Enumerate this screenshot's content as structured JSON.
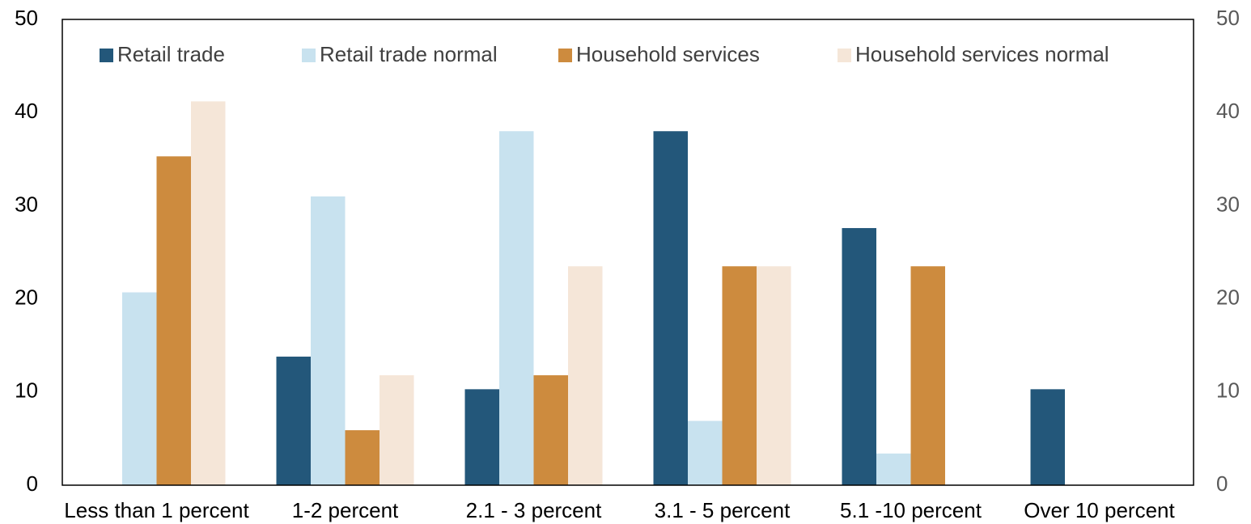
{
  "chart_data": {
    "type": "bar",
    "categories": [
      "Less than 1 percent",
      "1-2 percent",
      "2.1 - 3 percent",
      "3.1 - 5 percent",
      "5.1 -10 percent",
      "Over 10 percent"
    ],
    "series": [
      {
        "name": "Retail trade",
        "color": "#23577a",
        "values": [
          0,
          13.8,
          10.3,
          38,
          27.6,
          10.3
        ]
      },
      {
        "name": "Retail trade normal",
        "color": "#c8e2ef",
        "values": [
          20.7,
          31,
          38,
          6.9,
          3.4,
          0
        ]
      },
      {
        "name": "Household services",
        "color": "#cd8b3e",
        "values": [
          35.3,
          5.9,
          11.8,
          23.5,
          23.5,
          0
        ]
      },
      {
        "name": "Household services normal",
        "color": "#f5e6d8",
        "values": [
          41.2,
          11.8,
          23.5,
          23.5,
          0,
          0
        ]
      }
    ],
    "ylim": [
      0,
      50
    ],
    "yticks": [
      0,
      10,
      20,
      30,
      40,
      50
    ],
    "y2lim": [
      0,
      50
    ],
    "y2ticks": [
      0,
      10,
      20,
      30,
      40,
      50
    ],
    "legend": "top",
    "grid": false
  }
}
